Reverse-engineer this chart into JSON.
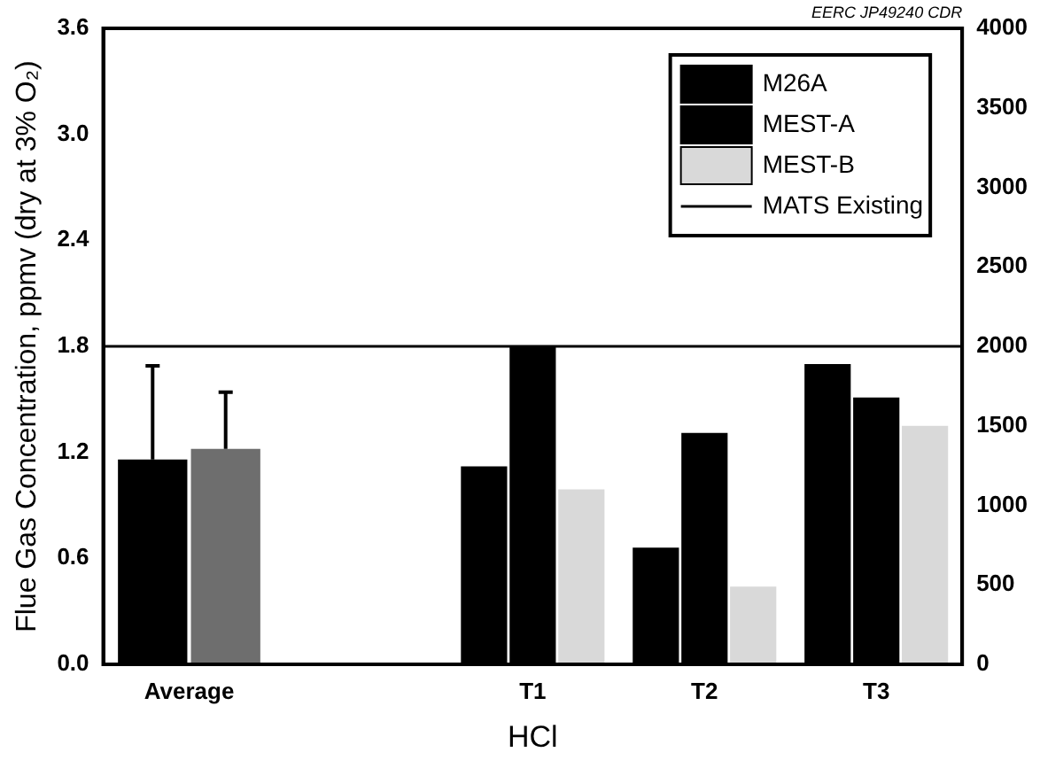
{
  "chart_data": {
    "type": "bar",
    "xlabel": "HCl",
    "ylabel": "Flue Gas Concentration, ppmv (dry at 3% O₂)",
    "annotations": [
      "EERC JP49240 CDR"
    ],
    "categories": [
      "Average",
      null,
      "T1",
      "T2",
      "T3"
    ],
    "series": [
      {
        "name": "M26A",
        "color": "#000000",
        "values": [
          1.16,
          null,
          1.12,
          0.66,
          1.7
        ],
        "errors": [
          [
            1.16,
            1.69
          ],
          null,
          null,
          null,
          null
        ]
      },
      {
        "name": "MEST-A",
        "color": "#000000",
        "values": [
          null,
          null,
          1.8,
          1.31,
          1.51
        ]
      },
      {
        "name": "MEST-B",
        "color": "#d9d9d9",
        "values": [
          null,
          null,
          0.99,
          0.44,
          1.35
        ]
      },
      {
        "color": "#6e6e6e",
        "values": [
          1.22,
          null,
          null,
          null,
          null
        ],
        "errors": [
          [
            1.22,
            1.54
          ],
          null,
          null,
          null,
          null
        ]
      }
    ],
    "ylim": [
      0,
      3.6
    ],
    "yticks": [
      {
        "value": 0,
        "label": "0.0"
      },
      {
        "value": 0.6,
        "label": "0.6"
      },
      {
        "value": 1.2,
        "label": "1.2"
      },
      {
        "value": 1.8,
        "label": "1.8"
      },
      {
        "value": 2.4,
        "label": "2.4"
      },
      {
        "value": 3,
        "label": "3.0"
      },
      {
        "value": 3.6,
        "label": "3.6"
      }
    ],
    "y2lim": [
      0,
      4000
    ],
    "y2ticks": [
      0,
      500,
      1000,
      1500,
      2000,
      2500,
      3000,
      3500,
      4000
    ],
    "ref_lines": [
      {
        "axis": "y",
        "value": 1.8,
        "label": "MATS Existing",
        "color": "#000000"
      }
    ],
    "legend": "top right",
    "grid": false
  }
}
